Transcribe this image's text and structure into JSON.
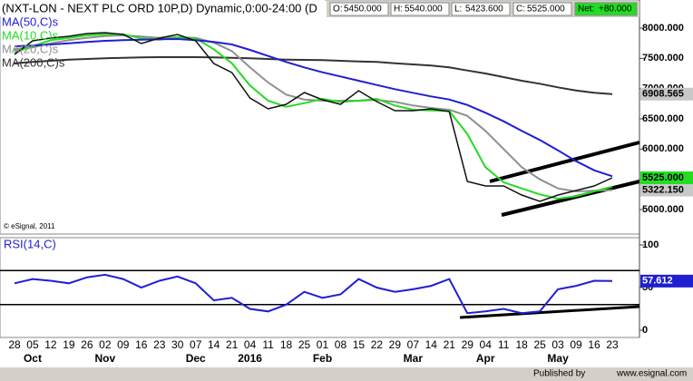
{
  "header": {
    "title": "(NXT-LON - NEXT PLC ORD 10P,D) Dynamic,0:00-24:00 (D",
    "quote": [
      {
        "label": "O:",
        "value": "5450.000"
      },
      {
        "label": "H:",
        "value": "5540.000"
      },
      {
        "label": "L:",
        "value": "5423.600"
      },
      {
        "label": "C:",
        "value": "5525.000"
      },
      {
        "label": "Net:",
        "value": "+80.000"
      }
    ]
  },
  "chart_data": [
    {
      "type": "line",
      "ylim": [
        4640,
        8465
      ],
      "yticks": [
        {
          "value": 8000,
          "label": "8000.000"
        },
        {
          "value": 7500,
          "label": "7500.000"
        },
        {
          "value": 7000,
          "label": "7000.000"
        },
        {
          "value": 6500,
          "label": "6500.000"
        },
        {
          "value": 6000,
          "label": "6000.000"
        },
        {
          "value": 5500,
          "label": "5500.000"
        },
        {
          "value": 5000,
          "label": "5000.000"
        }
      ],
      "note": "© eSignal, 2011",
      "series": [
        {
          "color": "#111111",
          "label_color": "#22dd22",
          "last_label": "5525.000",
          "values": [
            7565,
            7790,
            7835,
            7865,
            7910,
            7925,
            7895,
            7745,
            7835,
            7895,
            7790,
            7415,
            7265,
            6845,
            6665,
            6740,
            6935,
            6815,
            6740,
            6965,
            6785,
            6635,
            6635,
            6665,
            6620,
            5465,
            5390,
            5390,
            5240,
            5135,
            5240,
            5315,
            5390,
            5525
          ]
        },
        {
          "name": "MA(50,C)s",
          "color": "#1f1fd0",
          "values": [
            7700,
            7710,
            7730,
            7750,
            7770,
            7790,
            7800,
            7810,
            7815,
            7820,
            7800,
            7770,
            7730,
            7640,
            7540,
            7440,
            7350,
            7270,
            7200,
            7130,
            7060,
            6990,
            6930,
            6870,
            6820,
            6730,
            6600,
            6460,
            6300,
            6150,
            5980,
            5800,
            5650,
            5550
          ]
        },
        {
          "name": "MA(10,C)s",
          "color": "#22dd22",
          "values": [
            7600,
            7700,
            7800,
            7840,
            7880,
            7900,
            7900,
            7830,
            7810,
            7850,
            7830,
            7650,
            7420,
            7050,
            6800,
            6700,
            6760,
            6830,
            6780,
            6800,
            6830,
            6720,
            6650,
            6640,
            6630,
            6250,
            5700,
            5450,
            5350,
            5250,
            5180,
            5220,
            5300,
            5380
          ]
        },
        {
          "name": "MA(20,C)s",
          "color": "#909090",
          "label_color": "#c8c8c8",
          "last_label": "5322.150",
          "values": [
            7650,
            7680,
            7750,
            7800,
            7840,
            7870,
            7880,
            7860,
            7840,
            7850,
            7840,
            7760,
            7620,
            7350,
            7100,
            6900,
            6820,
            6800,
            6800,
            6800,
            6810,
            6780,
            6720,
            6680,
            6650,
            6550,
            6300,
            6000,
            5700,
            5500,
            5350,
            5300,
            5310,
            5322.15
          ]
        },
        {
          "name": "MA(200,C)s",
          "color": "#333333",
          "label_color": "#c8c8c8",
          "last_label": "6908.565",
          "values": [
            7420,
            7440,
            7460,
            7480,
            7490,
            7500,
            7510,
            7515,
            7520,
            7520,
            7520,
            7515,
            7510,
            7500,
            7490,
            7480,
            7475,
            7470,
            7460,
            7450,
            7440,
            7420,
            7400,
            7380,
            7350,
            7300,
            7250,
            7190,
            7130,
            7080,
            7020,
            6970,
            6930,
            6908.565
          ]
        }
      ]
    },
    {
      "type": "line",
      "title": "RSI(14,C)",
      "ylim": [
        -8.5,
        108.5
      ],
      "yticks": [
        100,
        50,
        0
      ],
      "hlines": [
        70,
        30
      ],
      "categories": [
        "28",
        "05",
        "12",
        "19",
        "26",
        "02",
        "09",
        "16",
        "23",
        "30",
        "07",
        "14",
        "21",
        "04",
        "11",
        "18",
        "25",
        "01",
        "08",
        "15",
        "22",
        "29",
        "07",
        "14",
        "21",
        "29",
        "04",
        "11",
        "18",
        "25",
        "03",
        "09",
        "16",
        "23"
      ],
      "month_labels": [
        null,
        "Oct",
        null,
        null,
        null,
        "Nov",
        null,
        null,
        null,
        null,
        "Dec",
        null,
        null,
        "2016",
        null,
        null,
        null,
        "Feb",
        null,
        null,
        null,
        null,
        "Mar",
        null,
        null,
        null,
        "Apr",
        null,
        null,
        null,
        "May",
        null,
        null,
        null
      ],
      "series": [
        {
          "color": "#1f1fd0",
          "label_color": "#1f1fd0",
          "last_label": "57.612",
          "values": [
            55,
            60,
            58,
            55,
            62,
            65,
            60,
            50,
            58,
            63,
            55,
            35,
            38,
            25,
            22,
            30,
            45,
            38,
            42,
            60,
            50,
            45,
            48,
            52,
            60,
            20,
            22,
            25,
            20,
            22,
            48,
            52,
            58,
            57.612
          ]
        }
      ]
    }
  ],
  "footer": {
    "published": "Published by",
    "site": "www.esignal.com"
  }
}
